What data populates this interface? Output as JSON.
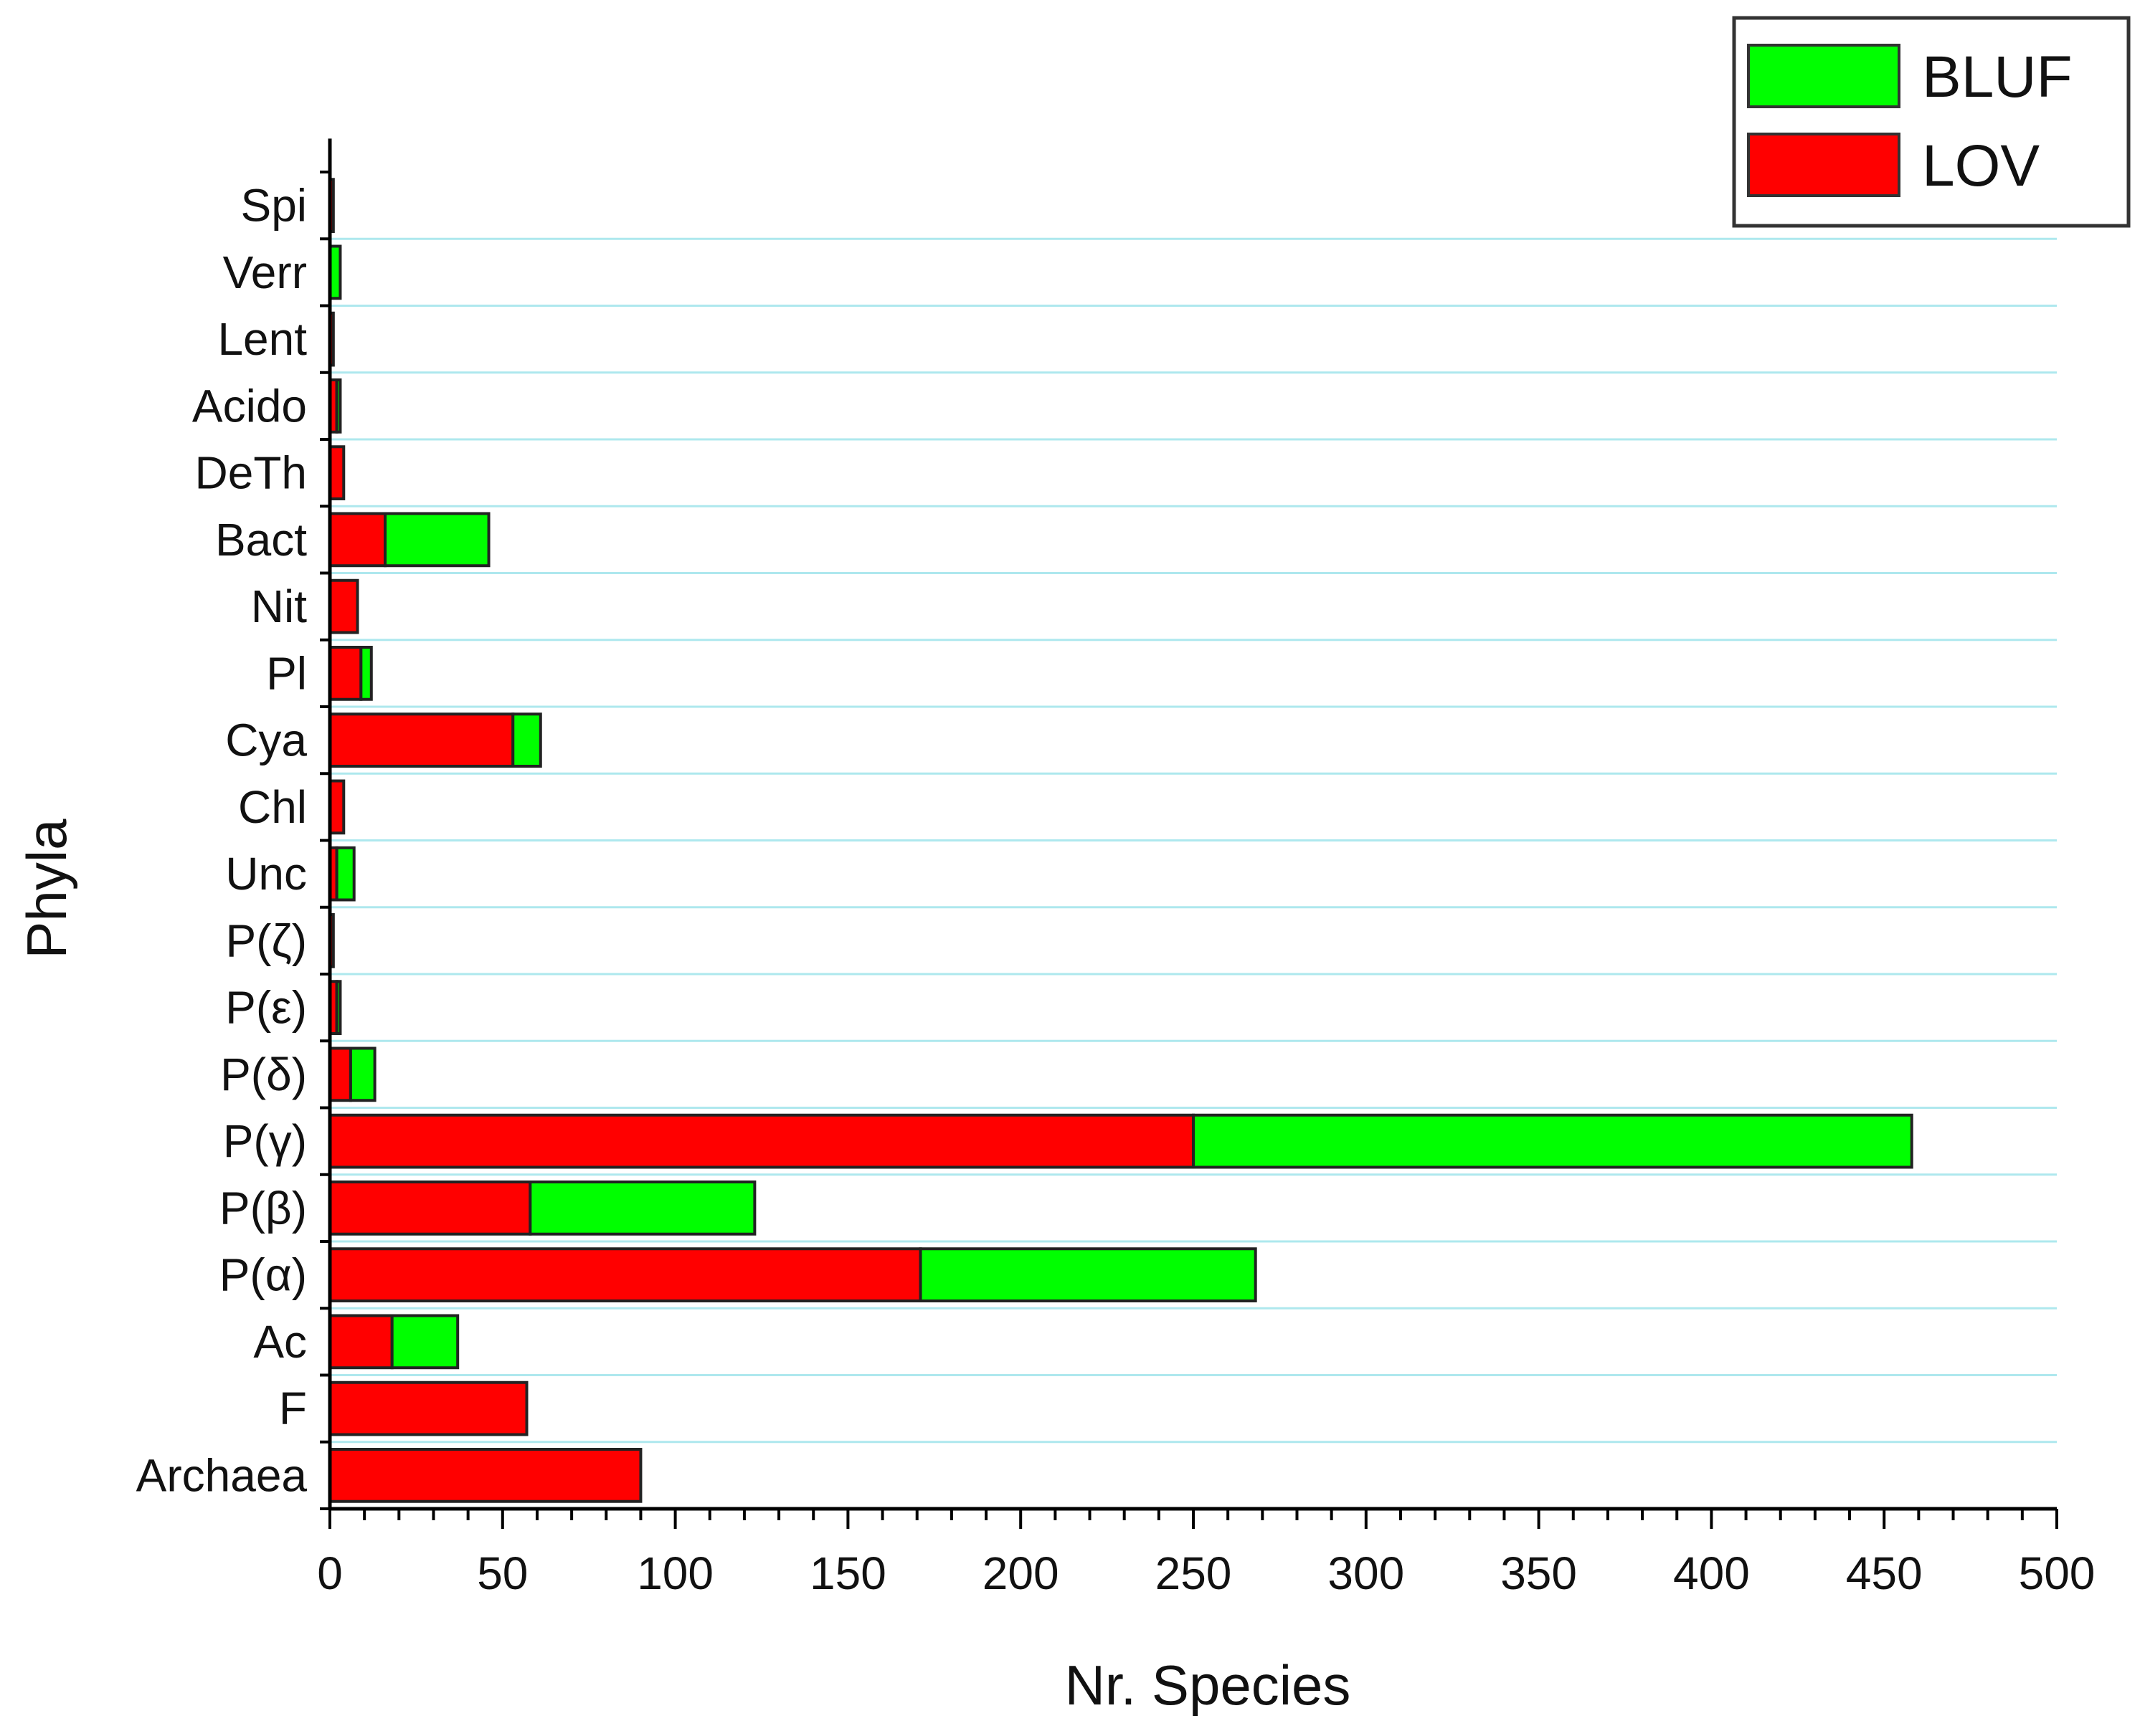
{
  "chart_data": {
    "type": "bar",
    "orientation": "horizontal",
    "stacked": true,
    "xlabel": "Nr. Species",
    "ylabel": "Phyla",
    "xlim": [
      0,
      500
    ],
    "x_ticks": [
      "0",
      "50",
      "100",
      "150",
      "200",
      "250",
      "300",
      "350",
      "400",
      "450",
      "500"
    ],
    "grid": true,
    "legend_position": "top-right",
    "categories": [
      "Archaea",
      "F",
      "Ac",
      "P(α)",
      "P(β)",
      "P(γ)",
      "P(δ)",
      "P(ε)",
      "P(ζ)",
      "Unc",
      "Chl",
      "Cya",
      "Pl",
      "Nit",
      "Bact",
      "DeTh",
      "Acido",
      "Lent",
      "Verr",
      "Spi"
    ],
    "series": [
      {
        "name": "LOV",
        "color": "#ff0000",
        "values": [
          90,
          57,
          18,
          171,
          58,
          250,
          6,
          2,
          1,
          2,
          4,
          53,
          9,
          8,
          16,
          4,
          2,
          1,
          0,
          1
        ]
      },
      {
        "name": "BLUF",
        "color": "#00ff00",
        "values": [
          0,
          0,
          19,
          97,
          65,
          208,
          7,
          1,
          0,
          5,
          0,
          8,
          3,
          0,
          30,
          0,
          1,
          0,
          3,
          0
        ]
      }
    ],
    "legend_order": [
      "BLUF",
      "LOV"
    ],
    "gridline_color": "#aee8ee"
  }
}
